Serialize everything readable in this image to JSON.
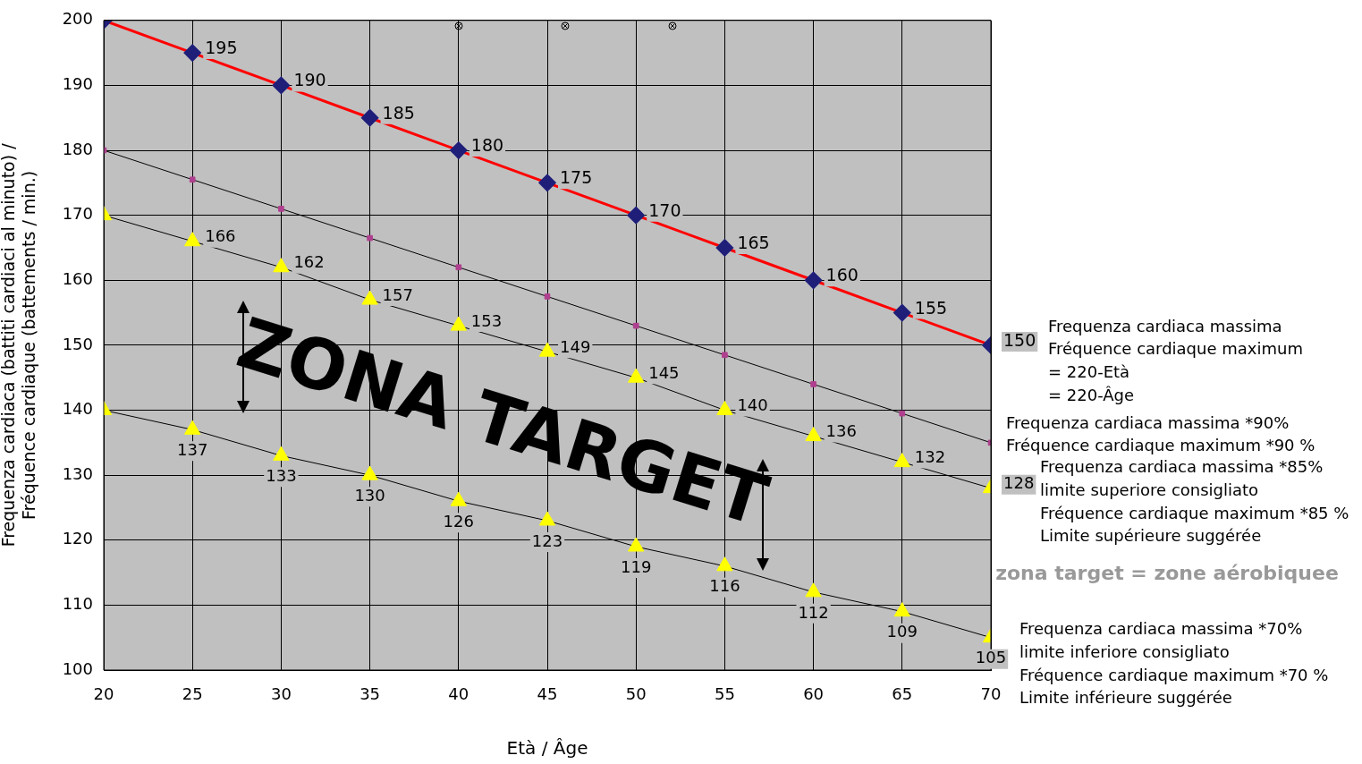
{
  "chart_data": {
    "type": "line",
    "xlabel": "Età / Âge",
    "ylabel": "Frequenza cardiaca (battiti cardiaci al minuto) /\nFréquence cardiaque (battements / min.)",
    "x": [
      20,
      25,
      30,
      35,
      40,
      45,
      50,
      55,
      60,
      65,
      70
    ],
    "xlim": [
      20,
      70
    ],
    "xticks": [
      20,
      25,
      30,
      35,
      40,
      45,
      50,
      55,
      60,
      65,
      70
    ],
    "ylim": [
      100,
      200
    ],
    "yticks": [
      100,
      110,
      120,
      130,
      140,
      150,
      160,
      170,
      180,
      190,
      200
    ],
    "grid": true,
    "legend": false,
    "line_style": "solid",
    "annotations": [
      "ZONA TARGET",
      "zona target = zone aérobiquee"
    ],
    "series": [
      {
        "name": "Frequenza cardiaca massima\nFréquence cardiaque maximum\n= 220-Età\n= 220-Âge",
        "color": "#ff0000",
        "colors": [
          "#1f1f7a",
          "#1f1f7a",
          "#1f1f7a",
          "#1f1f7a",
          "#1f1f7a",
          "#1f1f7a",
          "#1f1f7a",
          "#1f1f7a",
          "#1f1f7a",
          "#1f1f7a",
          "#1f1f7a"
        ],
        "marker": "diamond",
        "values": [
          200,
          195,
          190,
          185,
          180,
          175,
          170,
          165,
          160,
          155,
          150
        ],
        "value_labels": [
          null,
          "195",
          "190",
          "185",
          "180",
          "175",
          "170",
          "165",
          "160",
          "155",
          "150"
        ]
      },
      {
        "name": "Frequenza cardiaca massima *90%\nFréquence cardiaque maximum *90 %",
        "color": "#000000",
        "colors": [
          "#b0408f",
          "#b0408f",
          "#b0408f",
          "#b0408f",
          "#b0408f",
          "#b0408f",
          "#b0408f",
          "#b0408f",
          "#b0408f",
          "#b0408f",
          "#b0408f"
        ],
        "marker": "square",
        "values": [
          180,
          175.5,
          171,
          166.5,
          162,
          157.5,
          153,
          148.5,
          144,
          139.5,
          135
        ]
      },
      {
        "name": "Frequenza cardiaca massima *85%\nlimite superiore consigliato\nFréquence cardiaque maximum *85 %\nLimite supérieure suggérée",
        "color": "#000000",
        "colors": [
          "#ffff00",
          "#ffff00",
          "#ffff00",
          "#ffff00",
          "#ffff00",
          "#ffff00",
          "#ffff00",
          "#ffff00",
          "#ffff00",
          "#ffff00",
          "#ffff00"
        ],
        "marker": "triangle",
        "values": [
          170,
          166,
          162,
          157,
          153,
          149,
          145,
          140,
          136,
          132,
          128
        ],
        "value_labels": [
          null,
          "166",
          "162",
          "157",
          "153",
          "149",
          "145",
          "140",
          "136",
          "132",
          "128"
        ]
      },
      {
        "name": "Frequenza cardiaca massima *70%\nlimite inferiore consigliato\nFréquence cardiaque maximum *70 %\nLimite inférieure suggérée",
        "color": "#000000",
        "colors": [
          "#ffff00",
          "#ffff00",
          "#ffff00",
          "#ffff00",
          "#ffff00",
          "#ffff00",
          "#ffff00",
          "#ffff00",
          "#ffff00",
          "#ffff00",
          "#ffff00"
        ],
        "marker": "triangle",
        "values": [
          140,
          137,
          133,
          130,
          126,
          123,
          119,
          116,
          112,
          109,
          105
        ],
        "value_labels": [
          null,
          "137",
          "133",
          "130",
          "126",
          "123",
          "119",
          "116",
          "112",
          "109",
          "105"
        ]
      }
    ]
  }
}
